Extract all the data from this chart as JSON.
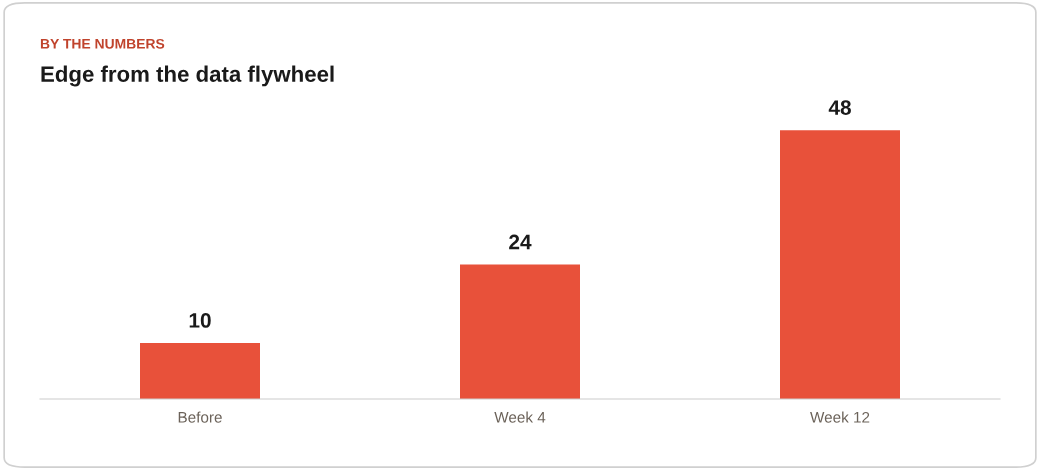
{
  "chart_data": {
    "type": "bar",
    "subtitle": "BY THE NUMBERS",
    "title": "Edge from the data flywheel",
    "categories": [
      "Before",
      "Week 4",
      "Week 12"
    ],
    "values": [
      10,
      24,
      48
    ],
    "color": "#e8513a",
    "data_labels": true,
    "grid": false,
    "legend": false
  }
}
